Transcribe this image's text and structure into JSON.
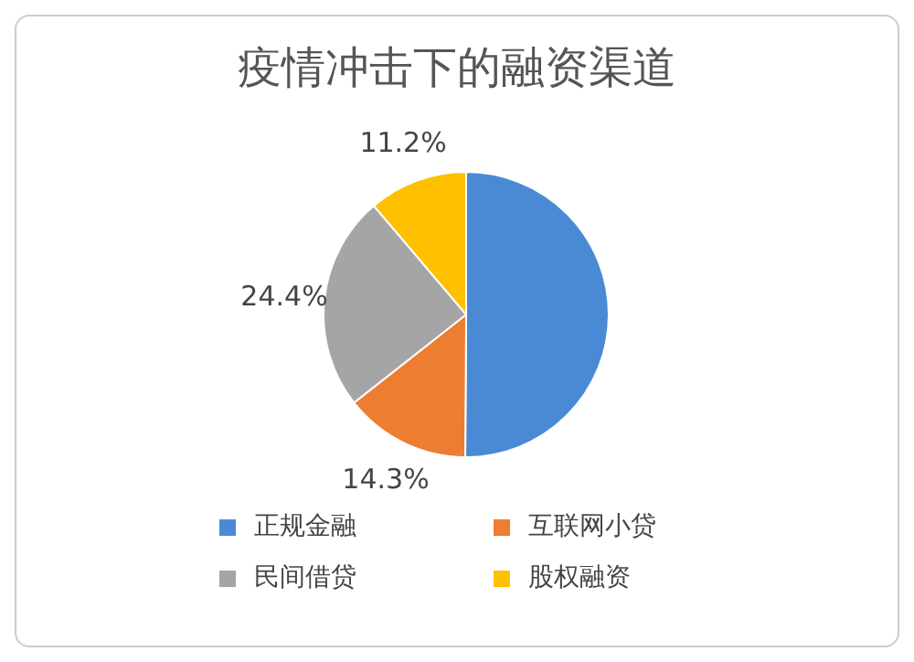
{
  "chart_data": {
    "type": "pie",
    "title": "疫情冲击下的融资渠道",
    "categories": [
      "正规金融",
      "互联网小贷",
      "民间借贷",
      "股权融资"
    ],
    "values": [
      50.1,
      14.3,
      24.4,
      11.2
    ],
    "value_labels": [
      null,
      "14.3%",
      "24.4%",
      "11.2%"
    ],
    "colors": [
      "#4a8ad4",
      "#ed7d31",
      "#a5a5a5",
      "#ffc000"
    ],
    "legend": "bottom"
  }
}
